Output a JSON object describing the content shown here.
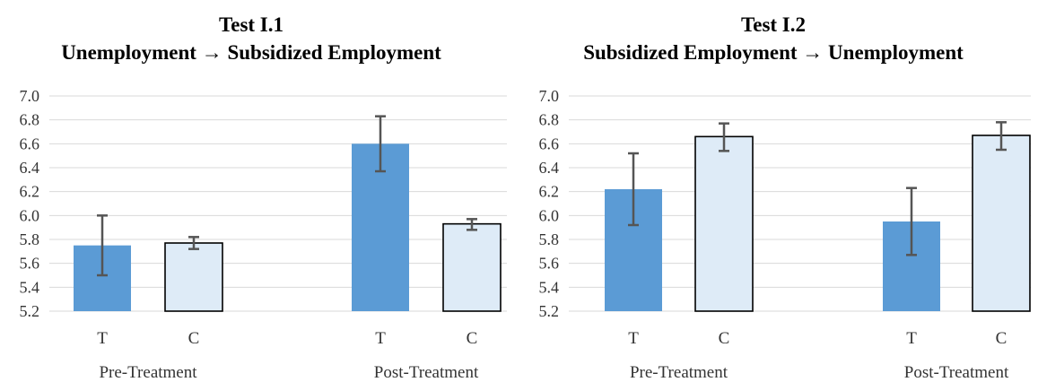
{
  "colors": {
    "treatment": "#5b9bd5",
    "control": "#deebf7",
    "control_stroke": "#000000",
    "grid": "#d9d9d9",
    "errorbar": "#555555"
  },
  "chart_data": [
    {
      "type": "bar",
      "title": "Test I.1",
      "subtitle": "Unemployment → Subsidized Employment",
      "groups": [
        "Pre-Treatment",
        "Post-Treatment"
      ],
      "categories": [
        "T",
        "C"
      ],
      "series": [
        {
          "values": [
            5.75,
            5.77
          ],
          "errors": [
            [
              5.5,
              6.0
            ],
            [
              5.72,
              5.82
            ]
          ]
        },
        {
          "values": [
            6.6,
            5.93
          ],
          "errors": [
            [
              6.37,
              6.83
            ],
            [
              5.88,
              5.97
            ]
          ]
        }
      ],
      "ylim": [
        5.2,
        7.0
      ],
      "yticks": [
        "5.2",
        "5.4",
        "5.6",
        "5.8",
        "6.0",
        "6.2",
        "6.4",
        "6.6",
        "6.8",
        "7.0"
      ],
      "grid": true
    },
    {
      "type": "bar",
      "title": "Test I.2",
      "subtitle": "Subsidized Employment → Unemployment",
      "groups": [
        "Pre-Treatment",
        "Post-Treatment"
      ],
      "categories": [
        "T",
        "C"
      ],
      "series": [
        {
          "values": [
            6.22,
            6.66
          ],
          "errors": [
            [
              5.92,
              6.52
            ],
            [
              6.54,
              6.77
            ]
          ]
        },
        {
          "values": [
            5.95,
            6.67
          ],
          "errors": [
            [
              5.67,
              6.23
            ],
            [
              6.55,
              6.78
            ]
          ]
        }
      ],
      "ylim": [
        5.2,
        7.0
      ],
      "yticks": [
        "5.2",
        "5.4",
        "5.6",
        "5.8",
        "6.0",
        "6.2",
        "6.4",
        "6.6",
        "6.8",
        "7.0"
      ],
      "grid": true
    }
  ]
}
